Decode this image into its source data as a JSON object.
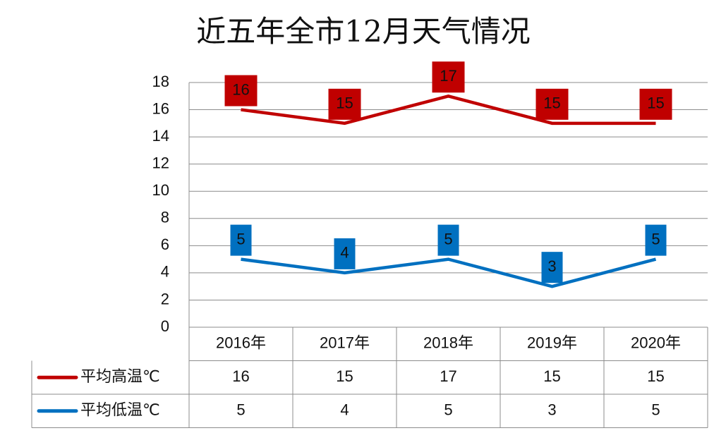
{
  "chart_data": {
    "type": "line",
    "title": "近五年全市12月天气情况",
    "categories": [
      "2016年",
      "2017年",
      "2018年",
      "2019年",
      "2020年"
    ],
    "series": [
      {
        "name": "平均高温℃",
        "color": "#c00000",
        "values": [
          16,
          15,
          17,
          15,
          15
        ]
      },
      {
        "name": "平均低温℃",
        "color": "#0070c0",
        "values": [
          5,
          4,
          5,
          3,
          5
        ]
      }
    ],
    "ylim": [
      0,
      18
    ],
    "yticks": [
      0,
      2,
      4,
      6,
      8,
      10,
      12,
      14,
      16,
      18
    ],
    "grid": true,
    "data_labels": true,
    "data_table": true
  }
}
